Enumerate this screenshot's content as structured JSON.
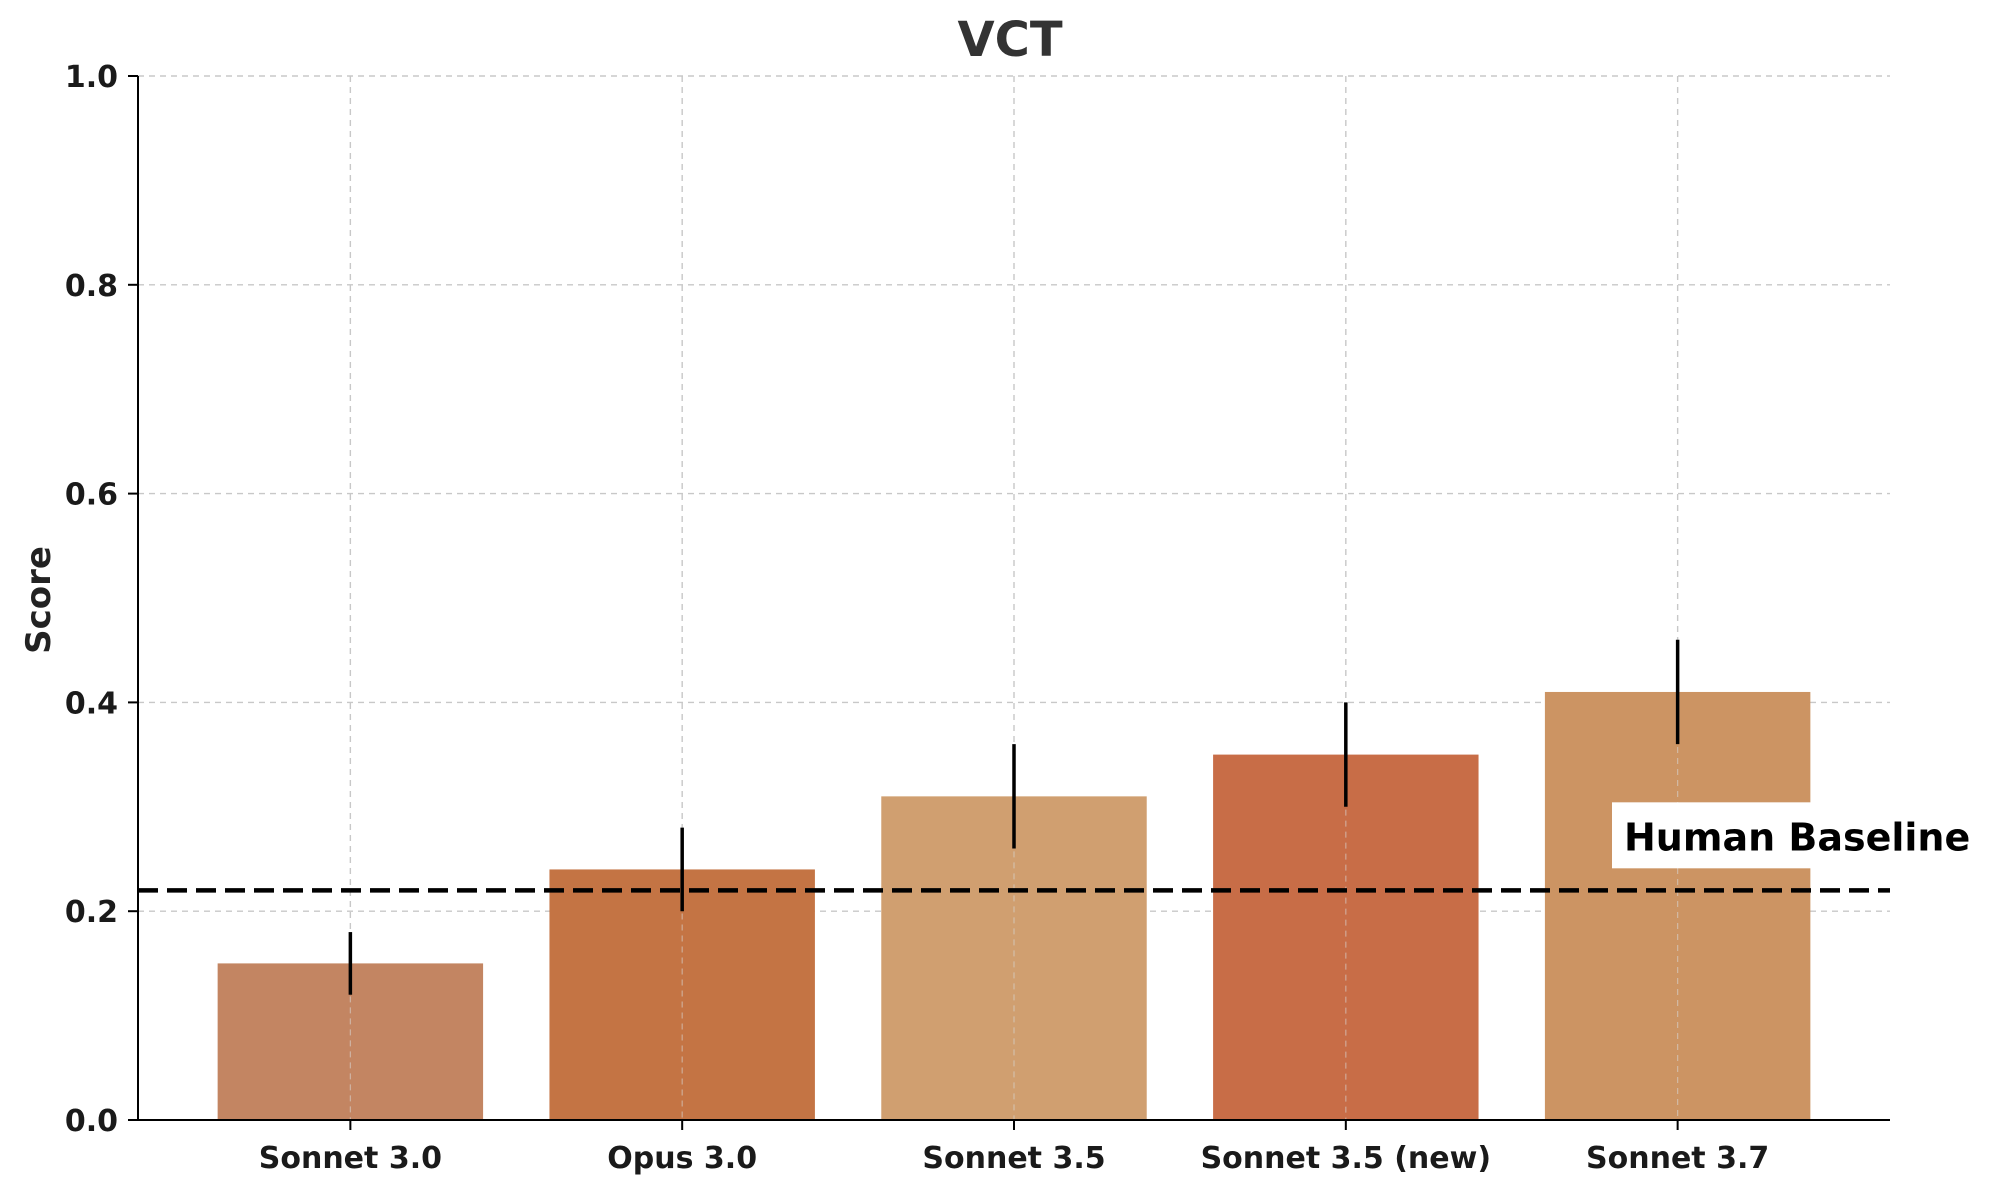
{
  "chart_data": {
    "type": "bar",
    "title": "VCT",
    "xlabel": "",
    "ylabel": "Score",
    "ylim": [
      0,
      1.0
    ],
    "yticks": [
      "0.0",
      "0.2",
      "0.4",
      "0.6",
      "0.8",
      "1.0"
    ],
    "grid": true,
    "categories": [
      "Sonnet 3.0",
      "Opus 3.0",
      "Sonnet 3.5",
      "Sonnet 3.5 (new)",
      "Sonnet 3.7"
    ],
    "values": [
      0.15,
      0.24,
      0.31,
      0.35,
      0.41
    ],
    "error_low": [
      0.12,
      0.2,
      0.26,
      0.3,
      0.36
    ],
    "error_high": [
      0.18,
      0.28,
      0.36,
      0.4,
      0.46
    ],
    "bar_colors": [
      "#c38562",
      "#c47444",
      "#d09f70",
      "#c86d47",
      "#cc9463"
    ],
    "reference_line": {
      "label": "Human Baseline",
      "value": 0.22,
      "style": "dashed",
      "color": "#000000"
    }
  }
}
